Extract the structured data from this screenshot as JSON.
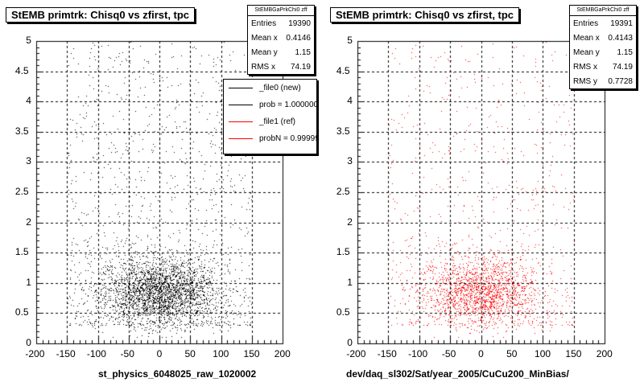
{
  "colors": {
    "new": "#000000",
    "ref": "#ff0000",
    "grid": "#000000"
  },
  "left": {
    "title": "StEMB primtrk: Chisq0 vs zfirst, tpc",
    "stats": {
      "header": "StEMBGaPrkChi0 zff",
      "rows": [
        {
          "label": "Entries",
          "value": "19390"
        },
        {
          "label": "Mean x",
          "value": "0.4146"
        },
        {
          "label": "Mean y",
          "value": "1.15"
        },
        {
          "label": "RMS x",
          "value": "74.19"
        }
      ]
    },
    "legend": [
      {
        "text": "_file0 (new)",
        "color": "#000000"
      },
      {
        "text": "prob = 1.000000",
        "color": "#000000"
      },
      {
        "text": "_file1 (ref)",
        "color": "#ff0000"
      },
      {
        "text": "probN = 0.99999",
        "color": "#ff0000"
      }
    ],
    "xlabel": "st_physics_6048025_raw_1020002"
  },
  "right": {
    "title": "StEMB primtrk: Chisq0 vs zfirst, tpc",
    "stats": {
      "header": "StEMBGaPrkChi0 zff",
      "rows": [
        {
          "label": "Entries",
          "value": "19391"
        },
        {
          "label": "Mean x",
          "value": "0.4143"
        },
        {
          "label": "Mean y",
          "value": "1.15"
        },
        {
          "label": "RMS x",
          "value": "74.19"
        },
        {
          "label": "RMS y",
          "value": "0.7728"
        }
      ]
    },
    "xlabel": "dev/daq_sl302/Sat/year_2005/CuCu200_MinBias/"
  },
  "chart_data": [
    {
      "type": "scatter",
      "title": "StEMB primtrk: Chisq0 vs zfirst, tpc",
      "xlabel": "st_physics_6048025_raw_1020002",
      "ylabel": "",
      "xlim": [
        -200,
        200
      ],
      "ylim": [
        0,
        5
      ],
      "x_ticks": [
        "-200",
        "-150",
        "-100",
        "-50",
        "0",
        "50",
        "100",
        "150",
        "200"
      ],
      "y_ticks": [
        "0",
        "0.5",
        "1",
        "1.5",
        "2",
        "2.5",
        "3",
        "3.5",
        "4",
        "4.5",
        "5"
      ],
      "grid": true,
      "color": "#000000",
      "series": [
        {
          "name": "_file0 (new)",
          "entries": 19390,
          "mean_x": 0.4146,
          "mean_y": 1.15,
          "rms_x": 74.19
        }
      ]
    },
    {
      "type": "scatter",
      "title": "StEMB primtrk: Chisq0 vs zfirst, tpc",
      "xlabel": "dev/daq_sl302/Sat/year_2005/CuCu200_MinBias/",
      "ylabel": "",
      "xlim": [
        -200,
        200
      ],
      "ylim": [
        0,
        5
      ],
      "x_ticks": [
        "-200",
        "-150",
        "-100",
        "-50",
        "0",
        "50",
        "100",
        "150",
        "200"
      ],
      "y_ticks": [
        "0",
        "0.5",
        "1",
        "1.5",
        "2",
        "2.5",
        "3",
        "3.5",
        "4",
        "4.5",
        "5"
      ],
      "grid": true,
      "color": "#ff0000",
      "series": [
        {
          "name": "_file1 (ref)",
          "entries": 19391,
          "mean_x": 0.4143,
          "mean_y": 1.15,
          "rms_x": 74.19,
          "rms_y": 0.7728
        }
      ]
    }
  ]
}
